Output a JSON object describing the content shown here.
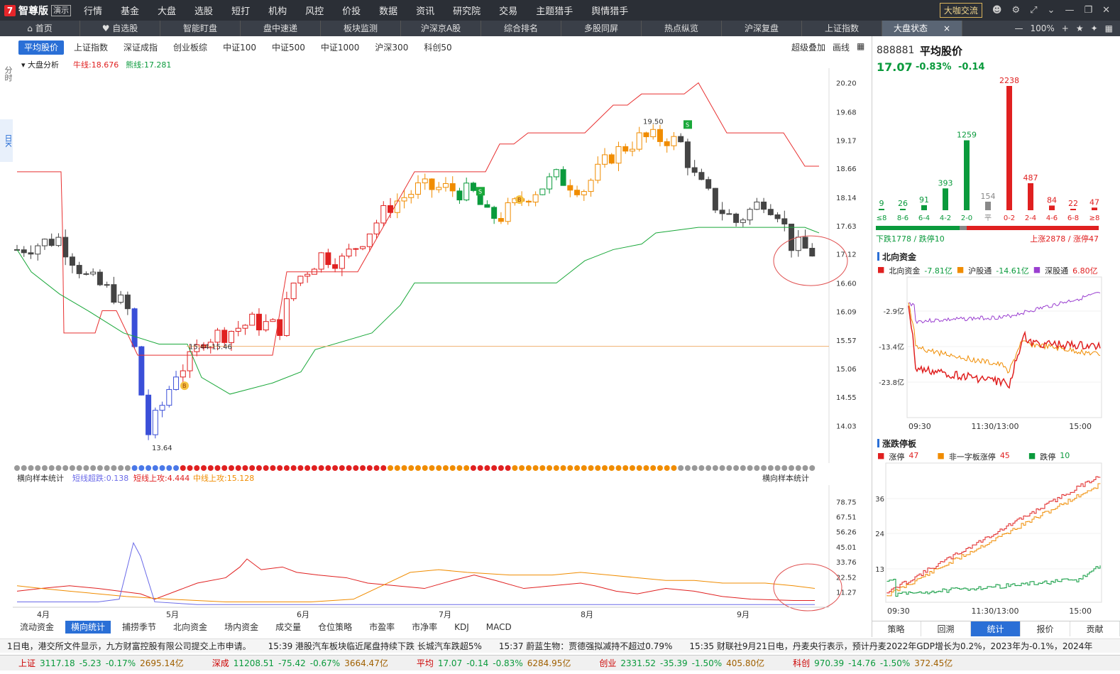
{
  "app": {
    "logo_mark": "7",
    "name": "智尊版",
    "demo": "演示",
    "menu": [
      "行情",
      "基金",
      "大盘",
      "选股",
      "短打",
      "机构",
      "风控",
      "价投",
      "数据",
      "资讯",
      "研究院",
      "交易",
      "主题猎手",
      "舆情猎手"
    ],
    "vip_button": "大咖交流"
  },
  "nav": {
    "items": [
      "首页",
      "自选股",
      "智能盯盘",
      "盘中速递",
      "板块监测",
      "沪深京A股",
      "综合排名",
      "多股同屏",
      "热点纵览",
      "沪深复盘",
      "上证指数",
      "大盘状态"
    ],
    "close": "×",
    "zoom": "100%"
  },
  "side_tabs": [
    "分时",
    "日K"
  ],
  "index_tabs": [
    "平均股价",
    "上证指数",
    "深证成指",
    "创业板综",
    "中证100",
    "中证500",
    "中证1000",
    "沪深300",
    "科创50"
  ],
  "index_right": [
    "超级叠加",
    "画线"
  ],
  "chart_label": {
    "menu": "大盘分析",
    "bull": "牛线:18.676",
    "bear": "熊线:17.281"
  },
  "main_axis": [
    "20.20",
    "19.68",
    "19.17",
    "18.66",
    "18.14",
    "17.63",
    "17.12",
    "16.60",
    "16.09",
    "15.57",
    "15.06",
    "14.55",
    "14.03"
  ],
  "main_annotations": {
    "high": "19.50",
    "low": "13.64",
    "range": "15.44-15.46",
    "b": "B",
    "s": "S"
  },
  "sub_label": {
    "name": "横向样本统计",
    "short_drop": "短线超跌:0.138",
    "short_up": "短线上攻:4.444",
    "mid_up": "中线上攻:15.128",
    "right_name": "横向样本统计"
  },
  "sub_axis": [
    "78.75",
    "67.51",
    "56.26",
    "45.01",
    "33.76",
    "22.52",
    "11.27"
  ],
  "x_labels": [
    "4月",
    "5月",
    "6月",
    "7月",
    "8月",
    "9月"
  ],
  "sub_tabs": [
    "流动资金",
    "横向统计",
    "捕捞季节",
    "北向资金",
    "场内资金",
    "成交量",
    "仓位策略",
    "市盈率",
    "市净率",
    "KDJ",
    "MACD"
  ],
  "ticker": [
    "1日电，港交所文件显示，九方财富控股有限公司提交上市申请。",
    "15:39 港股汽车板块临近尾盘持续下跌 长城汽车跌超5%",
    "15:37 蔚蓝生物：贾德强拟减持不超过0.79%",
    "15:35 财联社9月21日电，丹麦央行表示，预计丹麦2022年GDP增长为0.2%，2023年为-0.1%，2024年"
  ],
  "index_bar": [
    {
      "name": "上证",
      "value": "3117.18",
      "chg": "-5.23",
      "pct": "-0.17%",
      "amt": "2695.14亿"
    },
    {
      "name": "深成",
      "value": "11208.51",
      "chg": "-75.42",
      "pct": "-0.67%",
      "amt": "3664.47亿"
    },
    {
      "name": "平均",
      "value": "17.07",
      "chg": "-0.14",
      "pct": "-0.83%",
      "amt": "6284.95亿"
    },
    {
      "name": "创业",
      "value": "2331.52",
      "chg": "-35.39",
      "pct": "-1.50%",
      "amt": "405.80亿"
    },
    {
      "name": "科创",
      "value": "970.39",
      "chg": "-14.76",
      "pct": "-1.50%",
      "amt": "372.45亿"
    }
  ],
  "right": {
    "code": "888881",
    "name": "平均股价",
    "price": "17.07",
    "pct": "-0.83%",
    "chg": "-0.14",
    "dist_labels": [
      "≤8",
      "8-6",
      "6-4",
      "4-2",
      "2-0",
      "平",
      "0-2",
      "2-4",
      "4-6",
      "6-8",
      "≥8"
    ],
    "dist_values": [
      9,
      26,
      91,
      393,
      1259,
      154,
      2238,
      487,
      84,
      22,
      47
    ],
    "down_text": "下跌1778 / 跌停10",
    "up_text": "上涨2878 / 涨停47",
    "nf_title": "北向资金",
    "nf_legend": [
      "北向资金",
      "-7.81亿",
      "沪股通",
      "-14.61亿",
      "深股通",
      "6.80亿"
    ],
    "nf_axis": [
      "-2.9亿",
      "-13.4亿",
      "-23.8亿"
    ],
    "time_labels": [
      "09:30",
      "11:30/13:00",
      "15:00"
    ],
    "zt_title": "涨跌停板",
    "zt_legend": [
      "涨停",
      "47",
      "非一字板涨停",
      "45",
      "跌停",
      "10"
    ],
    "zt_axis": [
      "36",
      "24",
      "13"
    ],
    "tabs": [
      "策略",
      "回溯",
      "统计",
      "报价",
      "贡献"
    ]
  },
  "colors": {
    "up": "#e02020",
    "down": "#0a9a3c",
    "accent": "#2a6fd6",
    "orange": "#f08c00",
    "bull_line": "#e83030",
    "bear_line": "#1aa83a"
  }
}
